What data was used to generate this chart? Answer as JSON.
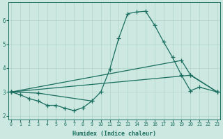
{
  "xlabel": "Humidex (Indice chaleur)",
  "bg_color": "#cce8e0",
  "grid_color": "#b0d4c8",
  "line_color": "#1a6e60",
  "xlim": [
    -0.3,
    23.3
  ],
  "ylim": [
    1.85,
    6.75
  ],
  "xticks": [
    0,
    1,
    2,
    3,
    4,
    5,
    6,
    7,
    8,
    9,
    10,
    11,
    12,
    13,
    14,
    15,
    16,
    17,
    18,
    19,
    20,
    21,
    22,
    23
  ],
  "yticks": [
    2,
    3,
    4,
    5,
    6
  ],
  "line1_x": [
    0,
    1,
    2,
    3,
    4,
    5,
    6,
    7,
    8,
    9
  ],
  "line1_y": [
    3.0,
    2.88,
    2.72,
    2.62,
    2.44,
    2.44,
    2.32,
    2.22,
    2.34,
    2.62
  ],
  "line2_x": [
    0,
    3,
    9,
    10,
    11,
    12,
    13,
    14,
    15,
    16,
    17,
    18,
    19,
    20,
    21,
    23
  ],
  "line2_y": [
    3.0,
    2.95,
    2.62,
    3.0,
    3.95,
    5.25,
    6.28,
    6.35,
    6.38,
    5.8,
    5.1,
    4.45,
    3.7,
    3.05,
    3.2,
    3.0
  ],
  "line3_x": [
    0,
    19,
    20,
    23
  ],
  "line3_y": [
    3.0,
    4.32,
    3.72,
    3.0
  ],
  "line4_x": [
    0,
    20,
    23
  ],
  "line4_y": [
    3.0,
    3.7,
    3.0
  ],
  "marker_size": 2.5,
  "linewidth": 0.9
}
